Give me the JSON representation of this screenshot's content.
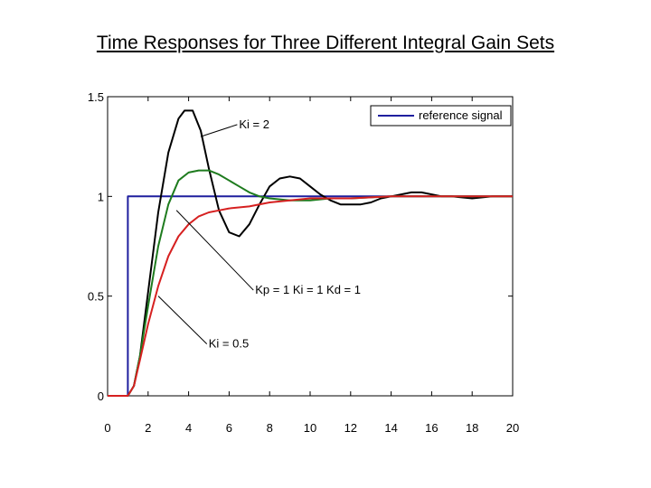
{
  "chart_data": {
    "type": "line",
    "title": "Time Responses for Three Different Integral Gain Sets",
    "xlim": [
      0,
      20
    ],
    "ylim": [
      0,
      1.5
    ],
    "xticks": [
      "0",
      "2",
      "4",
      "6",
      "8",
      "10",
      "12",
      "14",
      "16",
      "18",
      "20"
    ],
    "yticks": [
      "0",
      "0.5",
      "1",
      "1.5"
    ],
    "grid": false,
    "legend": {
      "position": "top-right",
      "entries": [
        "reference signal"
      ]
    },
    "annotations": [
      {
        "text": "Ki = 2",
        "target": [
          4.6,
          1.3
        ],
        "at": [
          6.4,
          1.36
        ]
      },
      {
        "text": "Kp = 1  Ki = 1  Kd = 1",
        "target": [
          3.4,
          0.93
        ],
        "at": [
          7.2,
          0.53
        ]
      },
      {
        "text": "Ki = 0.5",
        "target": [
          2.5,
          0.5
        ],
        "at": [
          4.9,
          0.26
        ]
      }
    ],
    "series": [
      {
        "name": "reference signal",
        "color": "#1f1f9e",
        "x": [
          0,
          1,
          1,
          20
        ],
        "y": [
          0,
          0,
          1,
          1
        ]
      },
      {
        "color": "#000000",
        "x": [
          0,
          1,
          1.3,
          1.6,
          2,
          2.5,
          3,
          3.5,
          3.8,
          4.2,
          4.6,
          5,
          5.5,
          6,
          6.5,
          7,
          7.5,
          8,
          8.5,
          9,
          9.5,
          10,
          10.5,
          11,
          11.5,
          12,
          12.5,
          13,
          13.5,
          14,
          14.5,
          15,
          15.5,
          16,
          16.5,
          17,
          18,
          19,
          20
        ],
        "y": [
          0,
          0,
          0.05,
          0.2,
          0.52,
          0.92,
          1.22,
          1.39,
          1.43,
          1.43,
          1.33,
          1.14,
          0.93,
          0.82,
          0.8,
          0.86,
          0.96,
          1.05,
          1.09,
          1.1,
          1.09,
          1.05,
          1.01,
          0.98,
          0.96,
          0.96,
          0.96,
          0.97,
          0.99,
          1.0,
          1.01,
          1.02,
          1.02,
          1.01,
          1.0,
          1.0,
          0.99,
          1.0,
          1.0
        ]
      },
      {
        "color": "#1e7b1e",
        "x": [
          0,
          1,
          1.3,
          1.6,
          2,
          2.5,
          3,
          3.5,
          4,
          4.5,
          5,
          5.5,
          6,
          6.5,
          7,
          7.5,
          8,
          9,
          10,
          11,
          12,
          14,
          16,
          18,
          20
        ],
        "y": [
          0,
          0,
          0.05,
          0.2,
          0.45,
          0.75,
          0.96,
          1.08,
          1.12,
          1.13,
          1.13,
          1.11,
          1.08,
          1.05,
          1.02,
          1.0,
          0.99,
          0.98,
          0.98,
          0.99,
          0.99,
          1.0,
          1.0,
          1.0,
          1.0
        ]
      },
      {
        "color": "#d62020",
        "x": [
          0,
          1,
          1.3,
          1.6,
          2,
          2.5,
          3,
          3.5,
          4,
          4.5,
          5,
          5.5,
          6,
          7,
          8,
          9,
          10,
          12,
          14,
          16,
          18,
          20
        ],
        "y": [
          0,
          0,
          0.05,
          0.18,
          0.36,
          0.55,
          0.7,
          0.8,
          0.86,
          0.9,
          0.92,
          0.93,
          0.94,
          0.95,
          0.97,
          0.98,
          0.99,
          0.99,
          1.0,
          1.0,
          1.0,
          1.0
        ]
      }
    ]
  }
}
